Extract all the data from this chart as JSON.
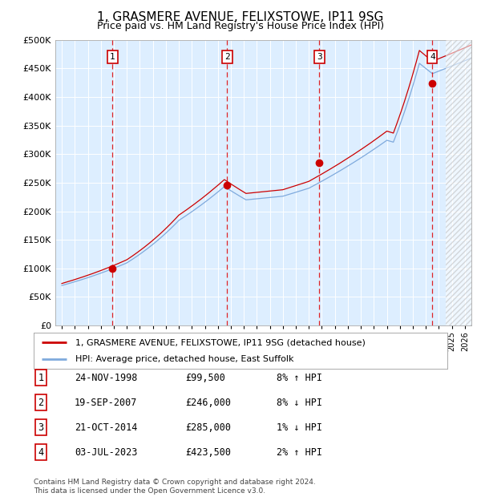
{
  "title": "1, GRASMERE AVENUE, FELIXSTOWE, IP11 9SG",
  "subtitle": "Price paid vs. HM Land Registry's House Price Index (HPI)",
  "title_fontsize": 11,
  "subtitle_fontsize": 9,
  "ylim": [
    0,
    500000
  ],
  "yticks": [
    0,
    50000,
    100000,
    150000,
    200000,
    250000,
    300000,
    350000,
    400000,
    450000,
    500000
  ],
  "ytick_labels": [
    "£0",
    "£50K",
    "£100K",
    "£150K",
    "£200K",
    "£250K",
    "£300K",
    "£350K",
    "£400K",
    "£450K",
    "£500K"
  ],
  "xlim_start": 1994.5,
  "xlim_end": 2026.5,
  "bg_color": "#ddeeff",
  "hpi_line_color": "#7faadd",
  "price_line_color": "#cc0000",
  "dot_color": "#cc0000",
  "dashed_line_color": "#dd0000",
  "sale_dates_decimal": [
    1998.9,
    2007.72,
    2014.81,
    2023.5
  ],
  "sale_prices": [
    99500,
    246000,
    285000,
    423500
  ],
  "sale_labels": [
    "1",
    "2",
    "3",
    "4"
  ],
  "legend_price_label": "1, GRASMERE AVENUE, FELIXSTOWE, IP11 9SG (detached house)",
  "legend_hpi_label": "HPI: Average price, detached house, East Suffolk",
  "table_rows": [
    [
      "1",
      "24-NOV-1998",
      "£99,500",
      "8% ↑ HPI"
    ],
    [
      "2",
      "19-SEP-2007",
      "£246,000",
      "8% ↓ HPI"
    ],
    [
      "3",
      "21-OCT-2014",
      "£285,000",
      "1% ↓ HPI"
    ],
    [
      "4",
      "03-JUL-2023",
      "£423,500",
      "2% ↑ HPI"
    ]
  ],
  "footer_text": "Contains HM Land Registry data © Crown copyright and database right 2024.\nThis data is licensed under the Open Government Licence v3.0.",
  "hatch_region_start": 2024.5,
  "hatch_region_end": 2027.0
}
